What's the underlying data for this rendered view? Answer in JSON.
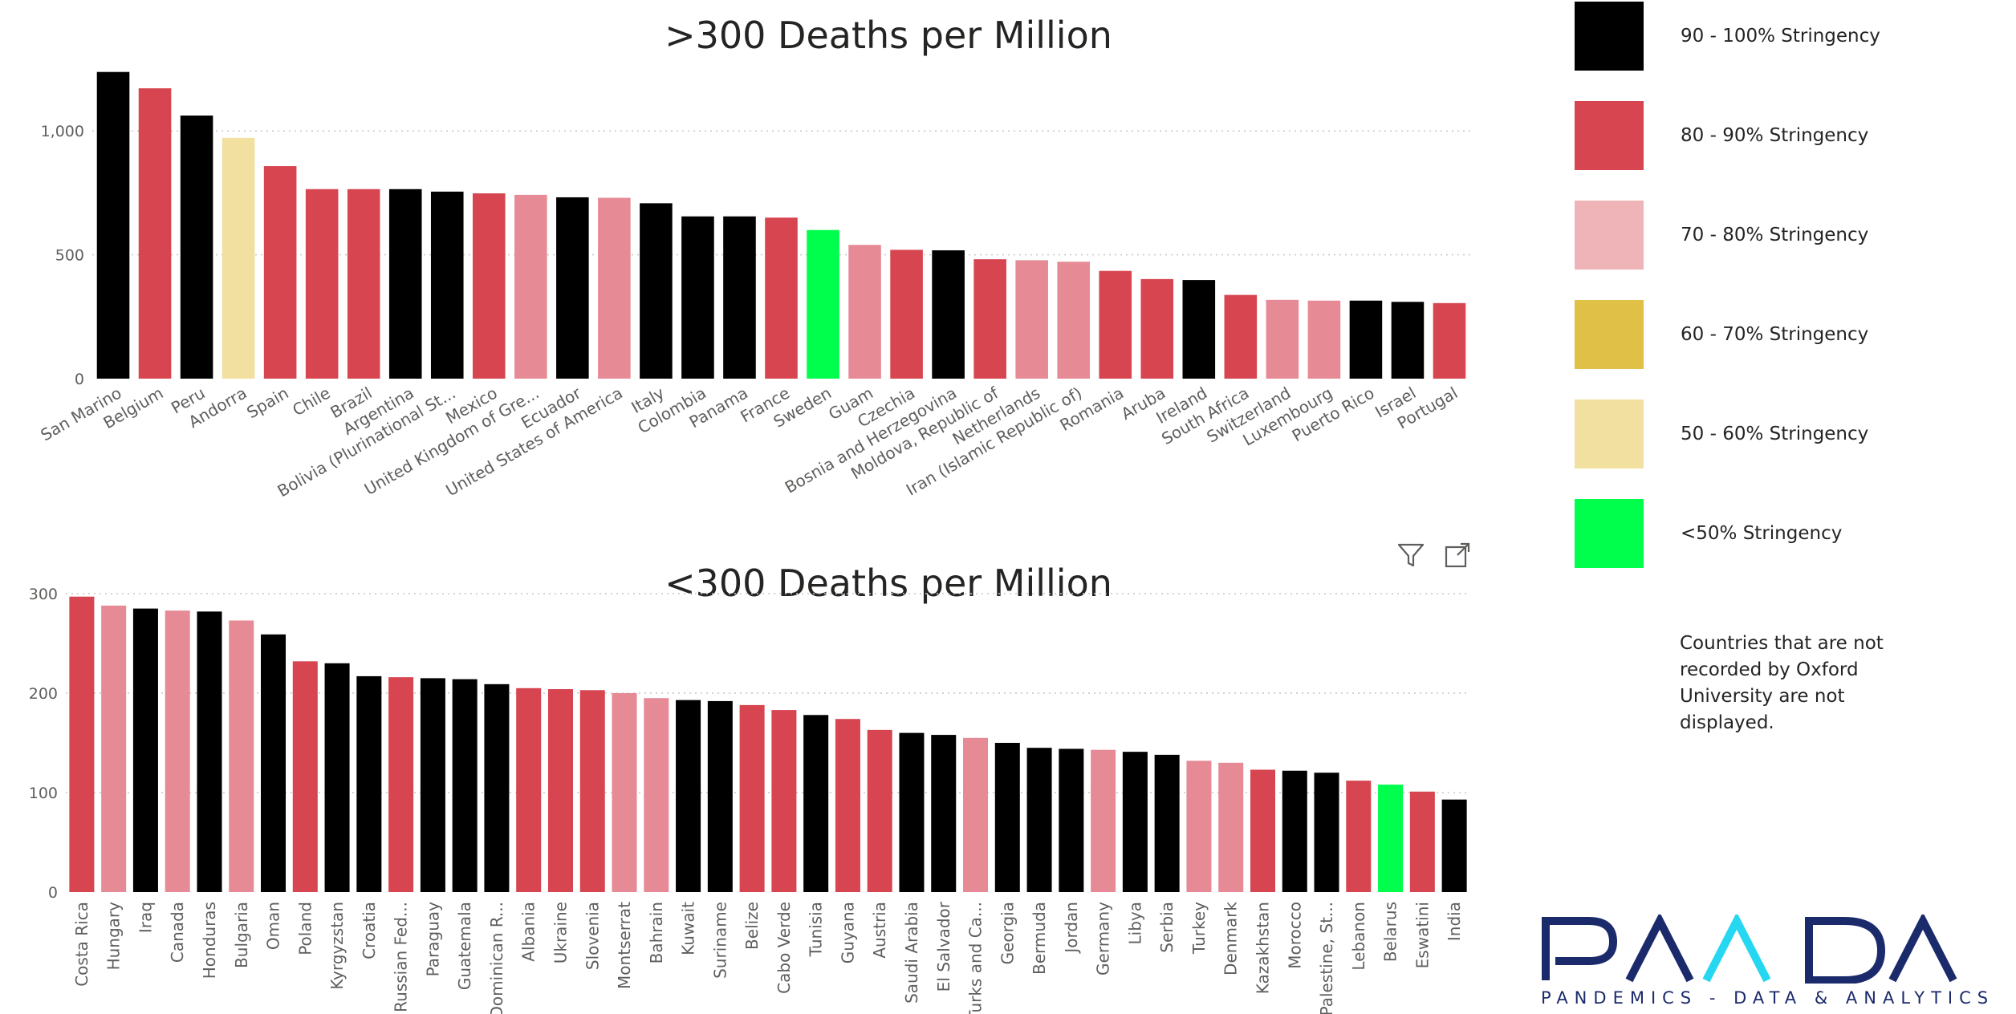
{
  "legend": [
    {
      "label": "90 - 100% Stringency",
      "color": "#000000"
    },
    {
      "label": "80 - 90% Stringency",
      "color": "#d64550"
    },
    {
      "label": "70 - 80% Stringency",
      "color": "#efb4b8"
    },
    {
      "label": "60 - 70% Stringency",
      "color": "#e0c046"
    },
    {
      "label": "50 - 60% Stringency",
      "color": "#f2e0a0"
    },
    {
      "label": "<50% Stringency",
      "color": "#00ff4c"
    }
  ],
  "note": "Countries that are not recorded by Oxford University are not displayed.",
  "logo": {
    "wordmark": "PANDA",
    "tagline": "PANDEMICS - DATA & ANALYTICS"
  },
  "colors": {
    "black": "#000000",
    "red": "#d64550",
    "pink": "#e68b95",
    "yellow": "#f2e0a0",
    "green": "#00ff4c"
  },
  "icons": {
    "filter": "filter-icon",
    "focus": "focus-mode-icon"
  },
  "chart_data": [
    {
      "type": "bar",
      "title": ">300 Deaths per Million",
      "ylim": [
        0,
        1250
      ],
      "yticks": [
        0,
        500,
        1000
      ],
      "ytick_labels": [
        "0",
        "500",
        "1,000"
      ],
      "grid": true,
      "categories": [
        "San Marino",
        "Belgium",
        "Peru",
        "Andorra",
        "Spain",
        "Chile",
        "Brazil",
        "Argentina",
        "Bolivia (Plurinational St...",
        "Mexico",
        "United Kingdom of Gre...",
        "Ecuador",
        "United States of America",
        "Italy",
        "Colombia",
        "Panama",
        "France",
        "Sweden",
        "Guam",
        "Czechia",
        "Bosnia and Herzegovina",
        "Moldova, Republic of",
        "Netherlands",
        "Iran (Islamic Republic of)",
        "Romania",
        "Aruba",
        "Ireland",
        "South Africa",
        "Switzerland",
        "Luxembourg",
        "Puerto Rico",
        "Israel",
        "Portugal"
      ],
      "values": [
        1238,
        1172,
        1062,
        972,
        858,
        765,
        765,
        765,
        755,
        748,
        742,
        732,
        730,
        708,
        655,
        655,
        650,
        600,
        540,
        520,
        518,
        482,
        478,
        472,
        435,
        402,
        398,
        338,
        318,
        315,
        315,
        310,
        305
      ],
      "colors": [
        "black",
        "red",
        "black",
        "yellow",
        "red",
        "red",
        "red",
        "black",
        "black",
        "red",
        "pink",
        "black",
        "pink",
        "black",
        "black",
        "black",
        "red",
        "green",
        "pink",
        "red",
        "black",
        "red",
        "pink",
        "pink",
        "red",
        "red",
        "black",
        "red",
        "pink",
        "pink",
        "black",
        "black",
        "red"
      ]
    },
    {
      "type": "bar",
      "title": "<300 Deaths per Million",
      "ylim": [
        0,
        300
      ],
      "yticks": [
        0,
        100,
        200,
        300
      ],
      "ytick_labels": [
        "0",
        "100",
        "200",
        "300"
      ],
      "grid": true,
      "categories": [
        "Costa Rica",
        "Hungary",
        "Iraq",
        "Canada",
        "Honduras",
        "Bulgaria",
        "Oman",
        "Poland",
        "Kyrgyzstan",
        "Croatia",
        "Russian Fed...",
        "Paraguay",
        "Guatemala",
        "Dominican R...",
        "Albania",
        "Ukraine",
        "Slovenia",
        "Montserrat",
        "Bahrain",
        "Kuwait",
        "Suriname",
        "Belize",
        "Cabo Verde",
        "Tunisia",
        "Guyana",
        "Austria",
        "Saudi Arabia",
        "El Salvador",
        "Turks and Ca...",
        "Georgia",
        "Bermuda",
        "Jordan",
        "Germany",
        "Libya",
        "Serbia",
        "Turkey",
        "Denmark",
        "Kazakhstan",
        "Morocco",
        "Palestine, St...",
        "Lebanon",
        "Belarus",
        "Eswatini",
        "India"
      ],
      "values": [
        297,
        288,
        285,
        283,
        282,
        273,
        259,
        232,
        230,
        217,
        216,
        215,
        214,
        209,
        205,
        204,
        203,
        200,
        195,
        193,
        192,
        188,
        183,
        178,
        174,
        163,
        160,
        158,
        155,
        150,
        145,
        144,
        143,
        141,
        138,
        132,
        130,
        123,
        122,
        120,
        112,
        108,
        101,
        93
      ],
      "colors": [
        "red",
        "pink",
        "black",
        "pink",
        "black",
        "pink",
        "black",
        "red",
        "black",
        "black",
        "red",
        "black",
        "black",
        "black",
        "red",
        "red",
        "red",
        "pink",
        "pink",
        "black",
        "black",
        "red",
        "red",
        "black",
        "red",
        "red",
        "black",
        "black",
        "pink",
        "black",
        "black",
        "black",
        "pink",
        "black",
        "black",
        "pink",
        "pink",
        "red",
        "black",
        "black",
        "red",
        "green",
        "red",
        "black"
      ]
    }
  ]
}
